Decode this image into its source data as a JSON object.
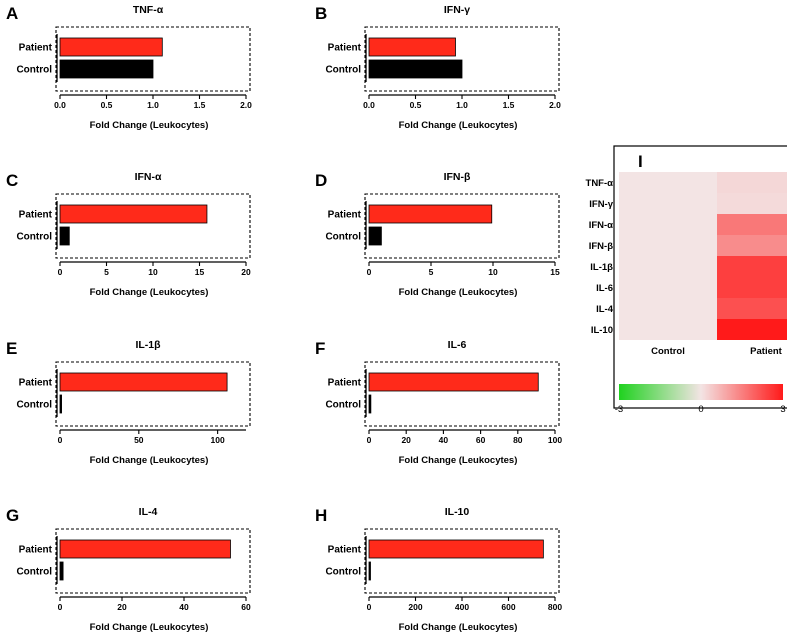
{
  "chart_data": {
    "bar_panels": [
      {
        "letter": "A",
        "title": "TNF-α",
        "type": "bar",
        "orientation": "horizontal",
        "categories": [
          "Patient",
          "Control"
        ],
        "values": [
          1.1,
          1.0
        ],
        "xlim": [
          0,
          2.0
        ],
        "ticks": [
          "0.0",
          "0.5",
          "1.0",
          "1.5",
          "2.0"
        ],
        "tick_values": [
          0,
          0.5,
          1.0,
          1.5,
          2.0
        ],
        "xlabel": "Fold Change (Leukocytes)"
      },
      {
        "letter": "B",
        "title": "IFN-γ",
        "type": "bar",
        "orientation": "horizontal",
        "categories": [
          "Patient",
          "Control"
        ],
        "values": [
          0.93,
          1.0
        ],
        "xlim": [
          0,
          2.0
        ],
        "ticks": [
          "0.0",
          "0.5",
          "1.0",
          "1.5",
          "2.0"
        ],
        "tick_values": [
          0,
          0.5,
          1.0,
          1.5,
          2.0
        ],
        "xlabel": "Fold Change (Leukocytes)"
      },
      {
        "letter": "C",
        "title": "IFN-α",
        "type": "bar",
        "orientation": "horizontal",
        "categories": [
          "Patient",
          "Control"
        ],
        "values": [
          15.8,
          1.0
        ],
        "xlim": [
          0,
          20
        ],
        "ticks": [
          "0",
          "5",
          "10",
          "15",
          "20"
        ],
        "tick_values": [
          0,
          5,
          10,
          15,
          20
        ],
        "xlabel": "Fold Change (Leukocytes)"
      },
      {
        "letter": "D",
        "title": "IFN-β",
        "type": "bar",
        "orientation": "horizontal",
        "categories": [
          "Patient",
          "Control"
        ],
        "values": [
          9.9,
          1.0
        ],
        "xlim": [
          0,
          15
        ],
        "ticks": [
          "0",
          "5",
          "10",
          "15"
        ],
        "tick_values": [
          0,
          5,
          10,
          15
        ],
        "xlabel": "Fold Change (Leukocytes)"
      },
      {
        "letter": "E",
        "title": "IL-1β",
        "type": "bar",
        "orientation": "horizontal",
        "categories": [
          "Patient",
          "Control"
        ],
        "values": [
          106,
          1.0
        ],
        "xlim": [
          0,
          118
        ],
        "ticks": [
          "0",
          "50",
          "100"
        ],
        "tick_values": [
          0,
          50,
          100
        ],
        "xlabel": "Fold Change (Leukocytes)"
      },
      {
        "letter": "F",
        "title": "IL-6",
        "type": "bar",
        "orientation": "horizontal",
        "categories": [
          "Patient",
          "Control"
        ],
        "values": [
          91,
          1.0
        ],
        "xlim": [
          0,
          100
        ],
        "ticks": [
          "0",
          "20",
          "40",
          "60",
          "80",
          "100"
        ],
        "tick_values": [
          0,
          20,
          40,
          60,
          80,
          100
        ],
        "xlabel": "Fold Change (Leukocytes)"
      },
      {
        "letter": "G",
        "title": "IL-4",
        "type": "bar",
        "orientation": "horizontal",
        "categories": [
          "Patient",
          "Control"
        ],
        "values": [
          55,
          1.0
        ],
        "xlim": [
          0,
          60
        ],
        "ticks": [
          "0",
          "20",
          "40",
          "60"
        ],
        "tick_values": [
          0,
          20,
          40,
          60
        ],
        "xlabel": "Fold Change (Leukocytes)"
      },
      {
        "letter": "H",
        "title": "IL-10",
        "type": "bar",
        "orientation": "horizontal",
        "categories": [
          "Patient",
          "Control"
        ],
        "values": [
          750,
          1.0
        ],
        "xlim": [
          0,
          800
        ],
        "ticks": [
          "0",
          "200",
          "400",
          "600",
          "800"
        ],
        "tick_values": [
          0,
          200,
          400,
          600,
          800
        ],
        "xlabel": "Fold Change (Leukocytes)"
      }
    ],
    "heatmap": {
      "letter": "I",
      "type": "heatmap",
      "rows": [
        "TNF-α",
        "IFN-γ",
        "IFN-α",
        "IFN-β",
        "IL-1β",
        "IL-6",
        "IL-4",
        "IL-10"
      ],
      "columns": [
        "Control",
        "Patient"
      ],
      "values": [
        [
          0,
          0.2
        ],
        [
          0,
          0.15
        ],
        [
          0,
          1.6
        ],
        [
          0,
          1.3
        ],
        [
          0,
          2.45
        ],
        [
          0,
          2.45
        ],
        [
          0,
          2.2
        ],
        [
          0,
          3.0
        ]
      ],
      "scale": {
        "min": -3,
        "mid": 0,
        "max": 3,
        "labels": [
          "-3",
          "0",
          "3"
        ]
      },
      "colors": {
        "low": "#1fd21f",
        "mid": "#f3e4e4",
        "high": "#ff1a1a"
      }
    },
    "colors": {
      "patient": "#ff2a1a",
      "control": "#000000"
    }
  }
}
